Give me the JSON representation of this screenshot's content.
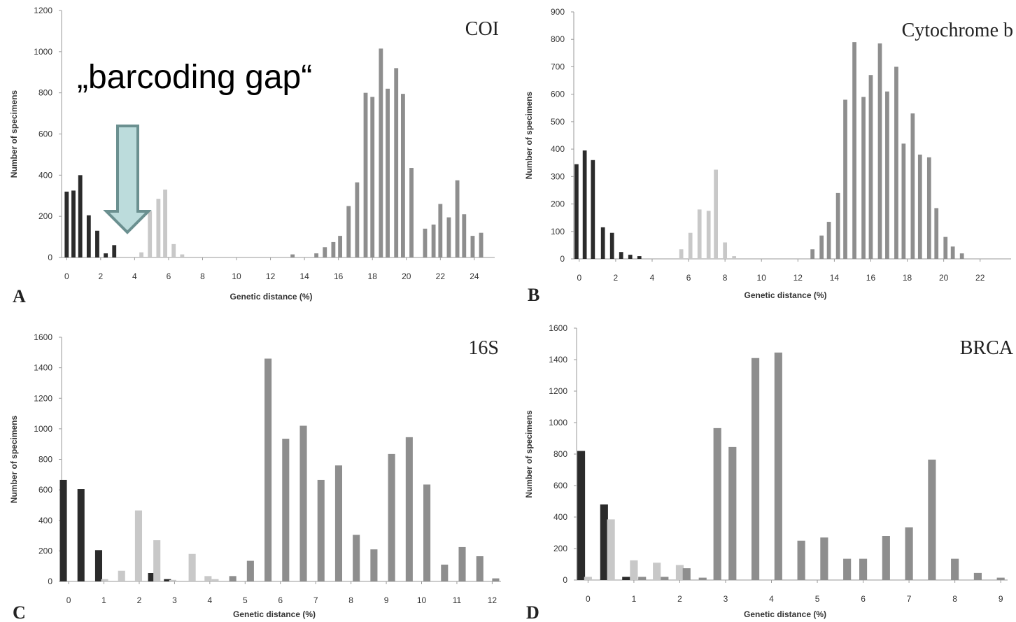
{
  "colors": {
    "intraspecific": "#2b2b2b",
    "intrageneric": "#c8c8c8",
    "intergeneric": "#8e8e8e",
    "arrow_fill": "#bcdcdc",
    "arrow_stroke": "#6b9090",
    "axis": "#9a9a9a"
  },
  "annotation": {
    "text": "„barcoding gap“",
    "icon": "down-arrow-icon"
  },
  "chart_data": [
    {
      "type": "bar",
      "panel": "A",
      "title": "COI",
      "xlabel": "Genetic distance (%)",
      "ylabel": "Number of specimens",
      "xlim": [
        -0.3,
        25.2
      ],
      "ylim": [
        0,
        1200
      ],
      "x_ticks": [
        "0",
        "2",
        "4",
        "6",
        "8",
        "10",
        "12",
        "14",
        "16",
        "18",
        "20",
        "22",
        "24"
      ],
      "x_tick_values": [
        0,
        2,
        4,
        6,
        8,
        10,
        12,
        14,
        16,
        18,
        20,
        22,
        24
      ],
      "y_ticks": [
        "0",
        "200",
        "400",
        "600",
        "800",
        "1000",
        "1200"
      ],
      "y_tick_values": [
        0,
        200,
        400,
        600,
        800,
        1000,
        1200
      ],
      "bar_width": 0.24,
      "series": [
        {
          "role": "intraspecific",
          "x": [
            0,
            0.4,
            0.8,
            1.3,
            1.8,
            2.3,
            2.8
          ],
          "values": [
            320,
            325,
            400,
            205,
            130,
            20,
            60
          ]
        },
        {
          "role": "intrageneric",
          "x": [
            4.4,
            4.9,
            5.4,
            5.8,
            6.3,
            6.8
          ],
          "values": [
            25,
            225,
            285,
            330,
            65,
            15
          ]
        },
        {
          "role": "intergeneric",
          "x": [
            13.3,
            14.7,
            15.2,
            15.7,
            16.1,
            16.6,
            17.1,
            17.6,
            18.0,
            18.5,
            18.9,
            19.4,
            19.8,
            20.3,
            21.1,
            21.6,
            22.0,
            22.5,
            23.0,
            23.4,
            23.9,
            24.4
          ],
          "values": [
            15,
            20,
            50,
            75,
            105,
            250,
            365,
            800,
            780,
            1015,
            820,
            920,
            795,
            435,
            140,
            160,
            260,
            195,
            375,
            210,
            105,
            120
          ]
        }
      ]
    },
    {
      "type": "bar",
      "panel": "B",
      "title": "Cytochrome b",
      "xlabel": "Genetic distance (%)",
      "ylabel": "Number of specimens",
      "xlim": [
        -0.3,
        23.7
      ],
      "ylim": [
        0,
        900
      ],
      "x_ticks": [
        "0",
        "2",
        "4",
        "6",
        "8",
        "10",
        "12",
        "14",
        "16",
        "18",
        "20",
        "22"
      ],
      "x_tick_values": [
        0,
        2,
        4,
        6,
        8,
        10,
        12,
        14,
        16,
        18,
        20,
        22
      ],
      "y_ticks": [
        "0",
        "100",
        "200",
        "300",
        "400",
        "500",
        "600",
        "700",
        "800",
        "900"
      ],
      "y_tick_values": [
        0,
        100,
        200,
        300,
        400,
        500,
        600,
        700,
        800,
        900
      ],
      "bar_width": 0.22,
      "series": [
        {
          "role": "intraspecific",
          "x": [
            -0.15,
            0.3,
            0.75,
            1.3,
            1.8,
            2.3,
            2.8,
            3.3
          ],
          "values": [
            345,
            395,
            360,
            115,
            95,
            25,
            15,
            10
          ]
        },
        {
          "role": "intrageneric",
          "x": [
            5.6,
            6.1,
            6.6,
            7.1,
            7.5,
            8.0,
            8.5
          ],
          "values": [
            35,
            95,
            180,
            175,
            325,
            60,
            10
          ]
        },
        {
          "role": "intergeneric",
          "x": [
            12.8,
            13.3,
            13.7,
            14.2,
            14.6,
            15.1,
            15.6,
            16.0,
            16.5,
            16.9,
            17.4,
            17.8,
            18.3,
            18.7,
            19.2,
            19.6,
            20.1,
            20.5,
            21.0
          ],
          "values": [
            35,
            85,
            135,
            240,
            580,
            790,
            590,
            670,
            785,
            610,
            700,
            420,
            530,
            380,
            370,
            185,
            80,
            45,
            20
          ]
        }
      ]
    },
    {
      "type": "bar",
      "panel": "C",
      "title": "16S",
      "xlabel": "Genetic distance (%)",
      "ylabel": "Number of specimens",
      "xlim": [
        -0.2,
        12.25
      ],
      "ylim": [
        0,
        1600
      ],
      "x_ticks": [
        "0",
        "1",
        "2",
        "3",
        "4",
        "5",
        "6",
        "7",
        "8",
        "9",
        "10",
        "11",
        "12"
      ],
      "x_tick_values": [
        0,
        1,
        2,
        3,
        4,
        5,
        6,
        7,
        8,
        9,
        10,
        11,
        12
      ],
      "y_ticks": [
        "0",
        "200",
        "400",
        "600",
        "800",
        "1000",
        "1200",
        "1400",
        "1600"
      ],
      "y_tick_values": [
        0,
        200,
        400,
        600,
        800,
        1000,
        1200,
        1400,
        1600
      ],
      "bar_width": 0.2,
      "series": [
        {
          "role": "intraspecific",
          "x": [
            -0.15,
            0.35,
            0.85,
            2.35,
            2.8
          ],
          "values": [
            665,
            605,
            205,
            55,
            15
          ]
        },
        {
          "role": "intrageneric",
          "x": [
            1.02,
            1.5,
            1.98,
            2.5,
            2.95,
            3.5,
            3.95,
            4.15
          ],
          "values": [
            15,
            70,
            465,
            270,
            10,
            180,
            35,
            15
          ]
        },
        {
          "role": "intergeneric",
          "x": [
            4.65,
            5.15,
            5.65,
            6.15,
            6.65,
            7.15,
            7.65,
            8.15,
            8.65,
            9.15,
            9.65,
            10.15,
            10.65,
            11.15,
            11.65,
            12.1
          ],
          "values": [
            35,
            135,
            1460,
            935,
            1020,
            665,
            760,
            305,
            210,
            835,
            945,
            635,
            110,
            225,
            165,
            20
          ]
        }
      ]
    },
    {
      "type": "bar",
      "panel": "D",
      "title": "BRCA",
      "xlabel": "Genetic distance (%)",
      "ylabel": "Number of specimens",
      "xlim": [
        -0.25,
        9.15
      ],
      "ylim": [
        0,
        1600
      ],
      "x_ticks": [
        "0",
        "1",
        "2",
        "3",
        "4",
        "5",
        "6",
        "7",
        "8",
        "9"
      ],
      "x_tick_values": [
        0,
        1,
        2,
        3,
        4,
        5,
        6,
        7,
        8,
        9
      ],
      "y_ticks": [
        "0",
        "200",
        "400",
        "600",
        "800",
        "1000",
        "1200",
        "1400",
        "1600"
      ],
      "y_tick_values": [
        0,
        200,
        400,
        600,
        800,
        1000,
        1200,
        1400,
        1600
      ],
      "bar_width": 0.17,
      "series": [
        {
          "role": "intraspecific",
          "x": [
            -0.15,
            0.35,
            0.83
          ],
          "values": [
            820,
            480,
            20
          ]
        },
        {
          "role": "intrageneric",
          "x": [
            0.0,
            0.5,
            1.0,
            1.5,
            2.0
          ],
          "values": [
            20,
            385,
            125,
            110,
            95
          ]
        },
        {
          "role": "intergeneric",
          "x": [
            1.18,
            1.67,
            2.15,
            2.5,
            2.82,
            3.15,
            3.65,
            4.15,
            4.65,
            5.15,
            5.65,
            6.0,
            6.5,
            7.0,
            7.5,
            8.0,
            8.5,
            9.0
          ],
          "values": [
            20,
            20,
            75,
            15,
            965,
            845,
            1410,
            1445,
            250,
            270,
            135,
            135,
            280,
            335,
            765,
            135,
            45,
            15
          ]
        }
      ]
    }
  ]
}
